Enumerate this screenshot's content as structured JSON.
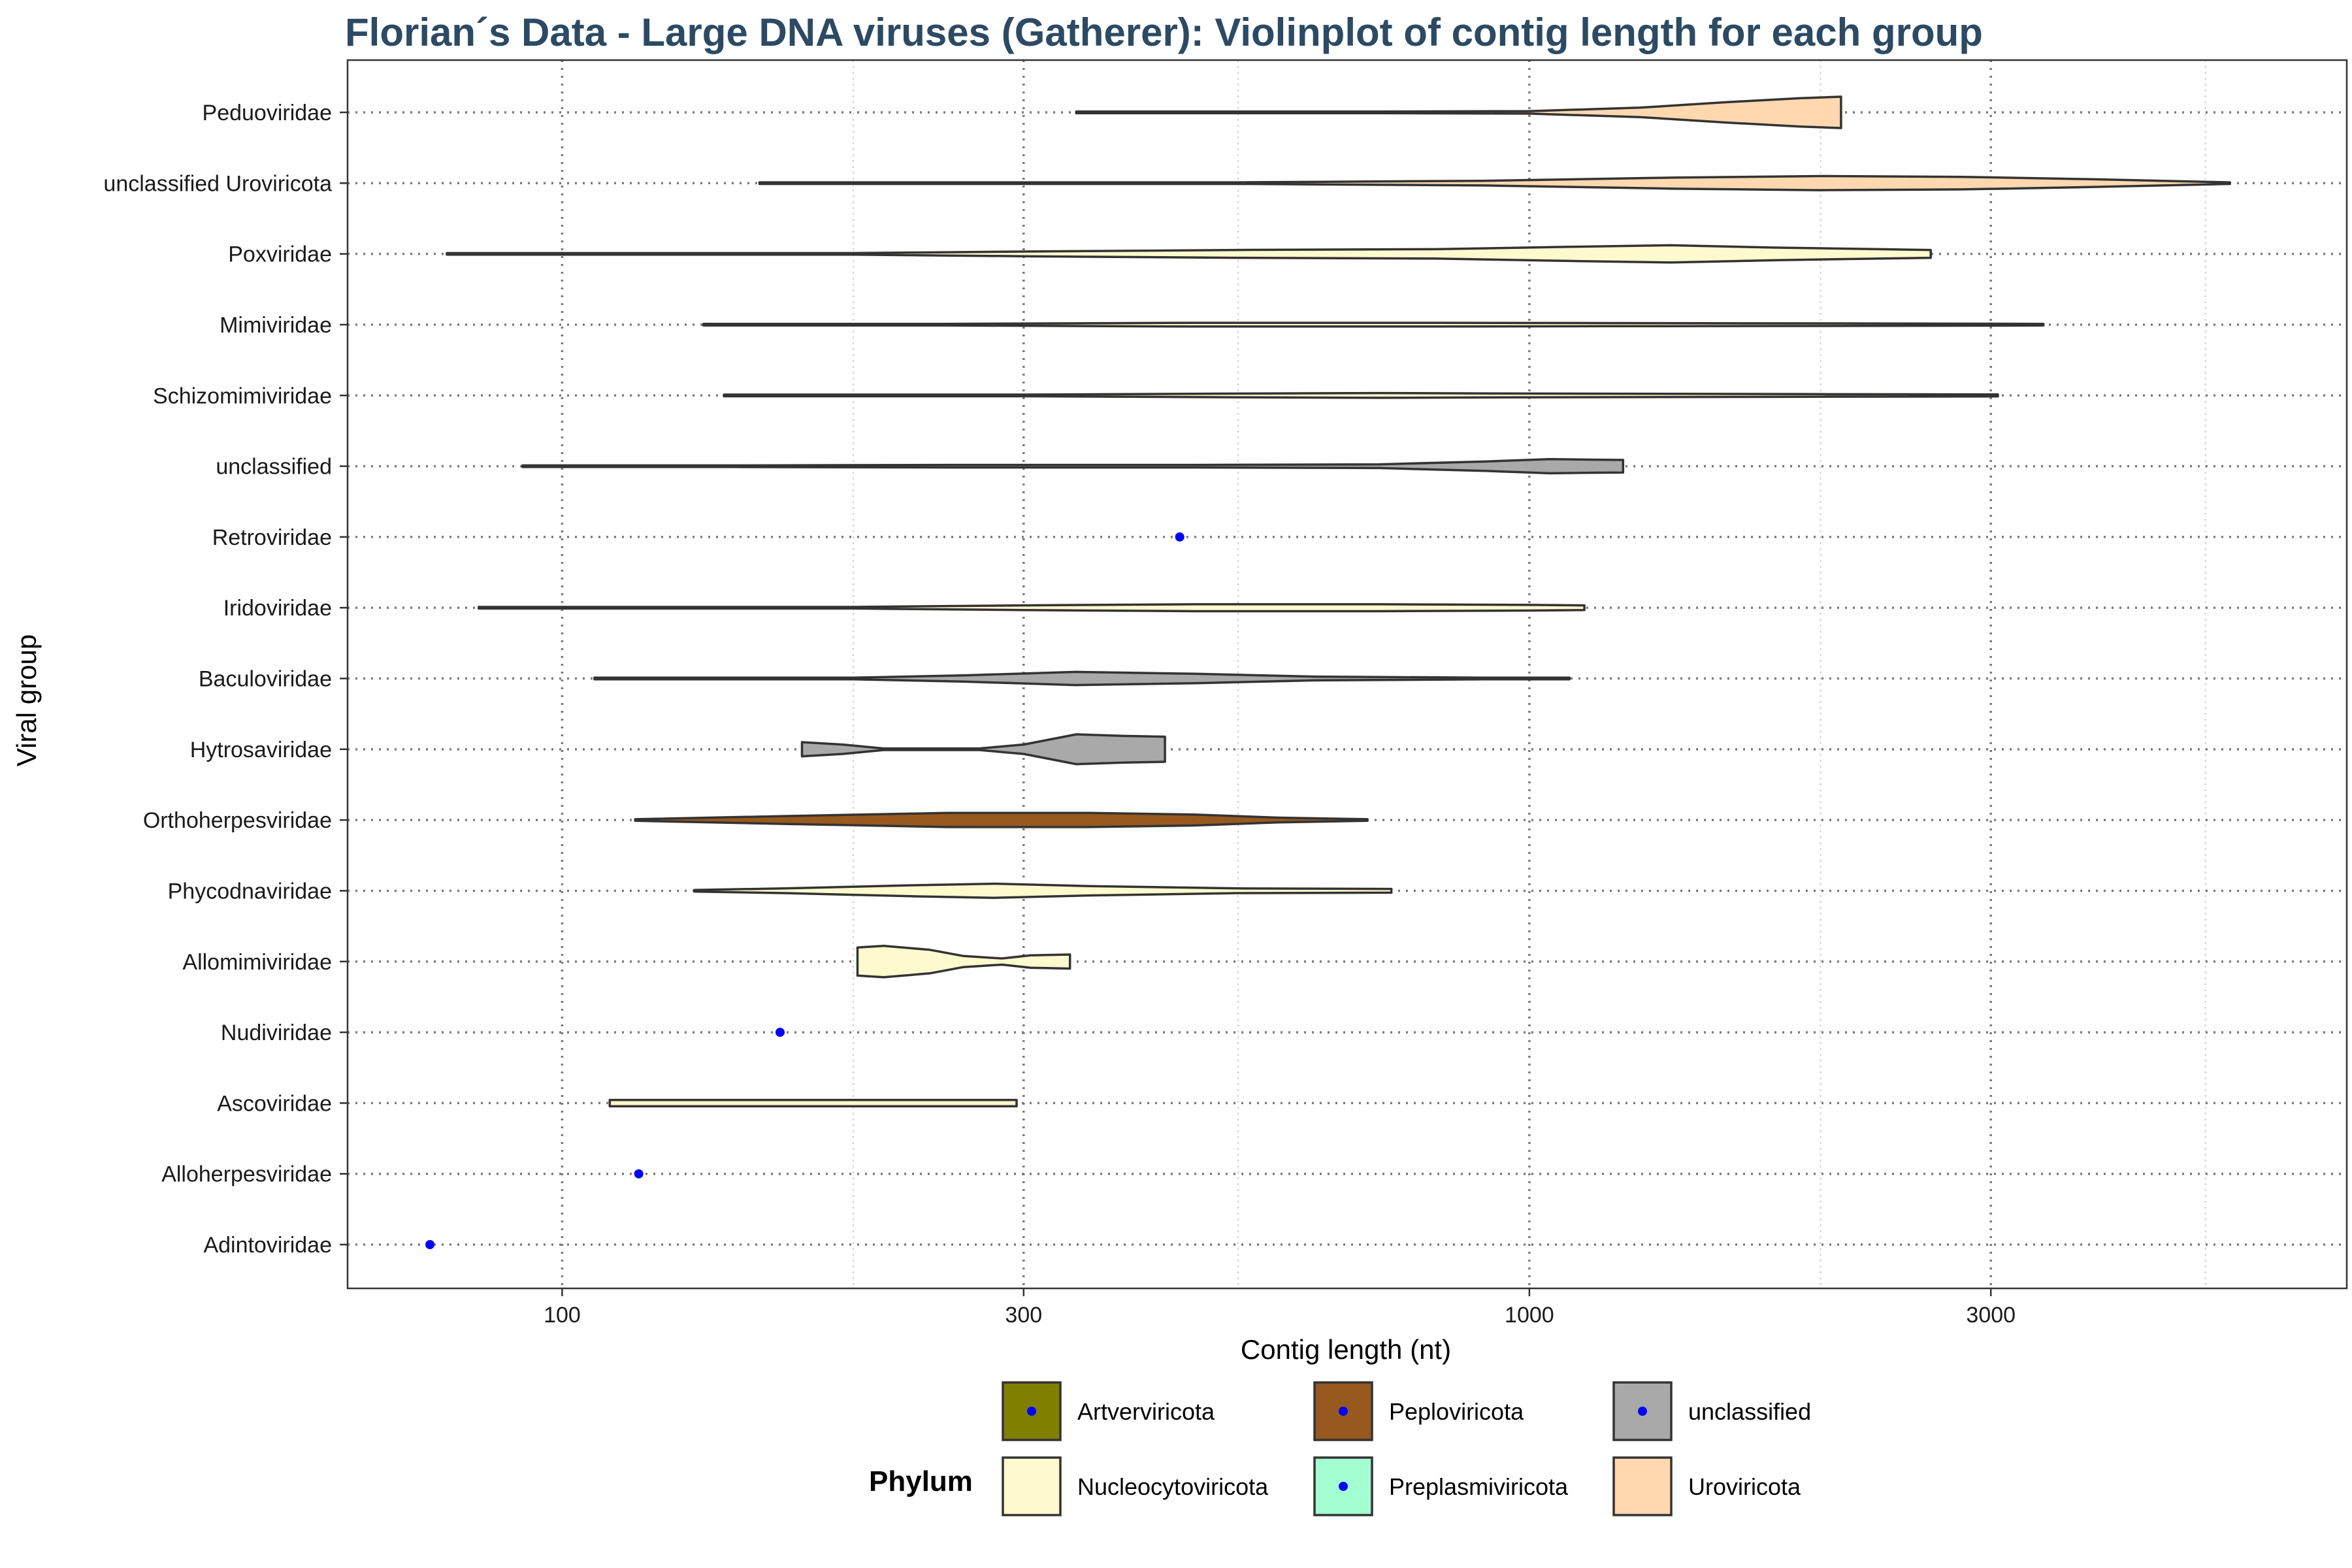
{
  "chart_data": {
    "type": "violin",
    "title": "Florian´s Data - Large DNA viruses (Gatherer): Violinplot of contig length for each group",
    "xlabel": "Contig length (nt)",
    "ylabel": "Viral group",
    "x_scale": "log10",
    "xlim": [
      60,
      7000
    ],
    "x_ticks": [
      100,
      300,
      1000,
      3000
    ],
    "x_tick_labels": [
      "100",
      "300",
      "1000",
      "3000"
    ],
    "x_minor_ticks": [
      200,
      500,
      2000,
      5000
    ],
    "grid": true,
    "legend_title": "Phylum",
    "legend_position": "bottom",
    "legend": [
      {
        "name": "Artverviricota",
        "color": "#808000",
        "has_point": true
      },
      {
        "name": "Nucleocytoviricota",
        "color": "#fffacd",
        "has_point": false
      },
      {
        "name": "Peploviricota",
        "color": "#98591e",
        "has_point": true
      },
      {
        "name": "Preplasmiviricota",
        "color": "#a3ffd1",
        "has_point": true
      },
      {
        "name": "unclassified",
        "color": "#a9a9a9",
        "has_point": true
      },
      {
        "name": "Uroviricota",
        "color": "#ffd8b0",
        "has_point": false
      }
    ],
    "point_color": "#0000ff",
    "groups": [
      {
        "name": "Peduoviridae",
        "phylum": "Uroviricota",
        "kind": "violin",
        "min": 340,
        "max": 2100,
        "profile": [
          [
            340,
            0.04
          ],
          [
            700,
            0.04
          ],
          [
            1000,
            0.08
          ],
          [
            1300,
            0.3
          ],
          [
            1600,
            0.65
          ],
          [
            1900,
            0.9
          ],
          [
            2100,
            1.0
          ]
        ]
      },
      {
        "name": "unclassified Uroviricota",
        "phylum": "Uroviricota",
        "kind": "violin",
        "min": 160,
        "max": 5300,
        "profile": [
          [
            160,
            0.02
          ],
          [
            500,
            0.05
          ],
          [
            900,
            0.15
          ],
          [
            1400,
            0.35
          ],
          [
            2000,
            0.45
          ],
          [
            2800,
            0.4
          ],
          [
            3800,
            0.25
          ],
          [
            5300,
            0.02
          ]
        ]
      },
      {
        "name": "Poxviridae",
        "phylum": "Nucleocytoviricota",
        "kind": "violin",
        "min": 76,
        "max": 2600,
        "profile": [
          [
            76,
            0.02
          ],
          [
            200,
            0.05
          ],
          [
            300,
            0.15
          ],
          [
            500,
            0.25
          ],
          [
            800,
            0.3
          ],
          [
            1100,
            0.45
          ],
          [
            1400,
            0.55
          ],
          [
            1800,
            0.4
          ],
          [
            2300,
            0.3
          ],
          [
            2600,
            0.25
          ]
        ]
      },
      {
        "name": "Mimiviridae",
        "phylum": "Nucleocytoviricota",
        "kind": "violin",
        "min": 140,
        "max": 3400,
        "profile": [
          [
            140,
            0.02
          ],
          [
            250,
            0.05
          ],
          [
            450,
            0.12
          ],
          [
            800,
            0.12
          ],
          [
            1200,
            0.1
          ],
          [
            2000,
            0.08
          ],
          [
            3000,
            0.06
          ],
          [
            3400,
            0.05
          ]
        ]
      },
      {
        "name": "Schizomimiviridae",
        "phylum": "Nucleocytoviricota",
        "kind": "violin",
        "min": 147,
        "max": 3050,
        "profile": [
          [
            147,
            0.02
          ],
          [
            300,
            0.05
          ],
          [
            500,
            0.12
          ],
          [
            700,
            0.15
          ],
          [
            1000,
            0.12
          ],
          [
            2000,
            0.08
          ],
          [
            3050,
            0.06
          ]
        ]
      },
      {
        "name": "unclassified",
        "phylum": "unclassified",
        "kind": "violin",
        "min": 91,
        "max": 1250,
        "profile": [
          [
            91,
            0.02
          ],
          [
            150,
            0.05
          ],
          [
            250,
            0.08
          ],
          [
            450,
            0.08
          ],
          [
            700,
            0.12
          ],
          [
            900,
            0.3
          ],
          [
            1050,
            0.45
          ],
          [
            1150,
            0.42
          ],
          [
            1250,
            0.4
          ]
        ]
      },
      {
        "name": "Retroviridae",
        "phylum": "Artverviricota",
        "kind": "point",
        "value": 435
      },
      {
        "name": "Iridoviridae",
        "phylum": "Nucleocytoviricota",
        "kind": "violin",
        "min": 82,
        "max": 1140,
        "profile": [
          [
            82,
            0.02
          ],
          [
            200,
            0.05
          ],
          [
            300,
            0.15
          ],
          [
            450,
            0.22
          ],
          [
            700,
            0.22
          ],
          [
            1000,
            0.18
          ],
          [
            1140,
            0.15
          ]
        ]
      },
      {
        "name": "Baculoviridae",
        "phylum": "unclassified",
        "kind": "violin",
        "min": 108,
        "max": 1100,
        "profile": [
          [
            108,
            0.02
          ],
          [
            200,
            0.05
          ],
          [
            260,
            0.2
          ],
          [
            340,
            0.42
          ],
          [
            450,
            0.3
          ],
          [
            600,
            0.12
          ],
          [
            900,
            0.05
          ],
          [
            1100,
            0.04
          ]
        ]
      },
      {
        "name": "Hytrosaviridae",
        "phylum": "unclassified",
        "kind": "violin",
        "min": 177,
        "max": 420,
        "profile": [
          [
            177,
            0.45
          ],
          [
            195,
            0.3
          ],
          [
            215,
            0.05
          ],
          [
            270,
            0.05
          ],
          [
            300,
            0.3
          ],
          [
            340,
            0.95
          ],
          [
            380,
            0.85
          ],
          [
            420,
            0.8
          ]
        ]
      },
      {
        "name": "Orthoherpesviridae",
        "phylum": "Peploviricota",
        "kind": "violin",
        "min": 119,
        "max": 680,
        "profile": [
          [
            119,
            0.02
          ],
          [
            170,
            0.25
          ],
          [
            250,
            0.45
          ],
          [
            350,
            0.45
          ],
          [
            450,
            0.35
          ],
          [
            550,
            0.15
          ],
          [
            680,
            0.05
          ]
        ]
      },
      {
        "name": "Phycodnaviridae",
        "phylum": "Nucleocytoviricota",
        "kind": "violin",
        "min": 137,
        "max": 720,
        "profile": [
          [
            137,
            0.05
          ],
          [
            170,
            0.15
          ],
          [
            230,
            0.35
          ],
          [
            280,
            0.45
          ],
          [
            350,
            0.3
          ],
          [
            500,
            0.15
          ],
          [
            720,
            0.12
          ]
        ]
      },
      {
        "name": "Allomimiviridae",
        "phylum": "Nucleocytoviricota",
        "kind": "violin",
        "min": 202,
        "max": 335,
        "profile": [
          [
            202,
            0.9
          ],
          [
            215,
            1.0
          ],
          [
            240,
            0.75
          ],
          [
            260,
            0.35
          ],
          [
            285,
            0.2
          ],
          [
            305,
            0.4
          ],
          [
            335,
            0.45
          ]
        ]
      },
      {
        "name": "Nudiviridae",
        "phylum": "Preplasmiviricota",
        "kind": "point",
        "value": 168
      },
      {
        "name": "Ascoviridae",
        "phylum": "Nucleocytoviricota",
        "kind": "violin",
        "min": 112,
        "max": 295,
        "profile": [
          [
            112,
            0.2
          ],
          [
            150,
            0.2
          ],
          [
            200,
            0.2
          ],
          [
            250,
            0.2
          ],
          [
            295,
            0.2
          ]
        ]
      },
      {
        "name": "Alloherpesviridae",
        "phylum": "Peploviricota",
        "kind": "point",
        "value": 120
      },
      {
        "name": "Adintoviridae",
        "phylum": "Preplasmiviricota",
        "kind": "point",
        "value": 73
      }
    ]
  }
}
